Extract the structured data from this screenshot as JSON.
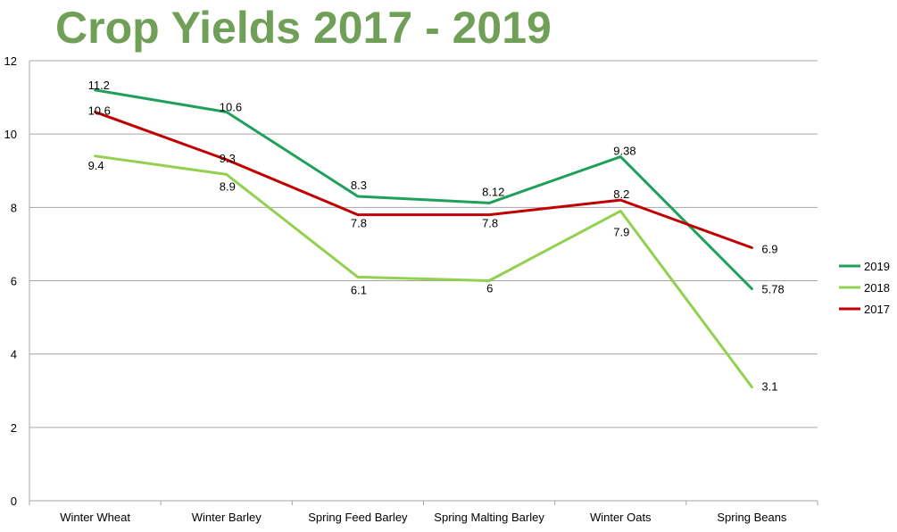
{
  "page": {
    "title": "Crop Yields 2017 - 2019"
  },
  "chart_data": {
    "type": "line",
    "title": "Crop Yields 2017 - 2019",
    "xlabel": "",
    "ylabel": "",
    "categories": [
      "Winter Wheat",
      "Winter Barley",
      "Spring Feed Barley",
      "Spring Malting Barley",
      "Winter Oats",
      "Spring Beans"
    ],
    "ylim": [
      0,
      12
    ],
    "yticks": [
      0,
      2,
      4,
      6,
      8,
      10,
      12
    ],
    "grid": true,
    "legend_position": "right",
    "series": [
      {
        "name": "2019",
        "color": "#1fa05a",
        "values": [
          11.2,
          10.6,
          8.3,
          8.12,
          9.38,
          5.78
        ],
        "labels": [
          "11.2",
          "10.6",
          "8.3",
          "8.12",
          "9.38",
          "5.78"
        ]
      },
      {
        "name": "2018",
        "color": "#92d050",
        "values": [
          9.4,
          8.9,
          6.1,
          6.0,
          7.9,
          3.1
        ],
        "labels": [
          "9.4",
          "8.9",
          "6.1",
          "6",
          "7.9",
          "3.1"
        ]
      },
      {
        "name": "2017",
        "color": "#c00000",
        "values": [
          10.6,
          9.3,
          7.8,
          7.8,
          8.2,
          6.9
        ],
        "labels": [
          "10.6",
          "9.3",
          "7.8",
          "7.8",
          "8.2",
          "6.9"
        ]
      }
    ]
  }
}
